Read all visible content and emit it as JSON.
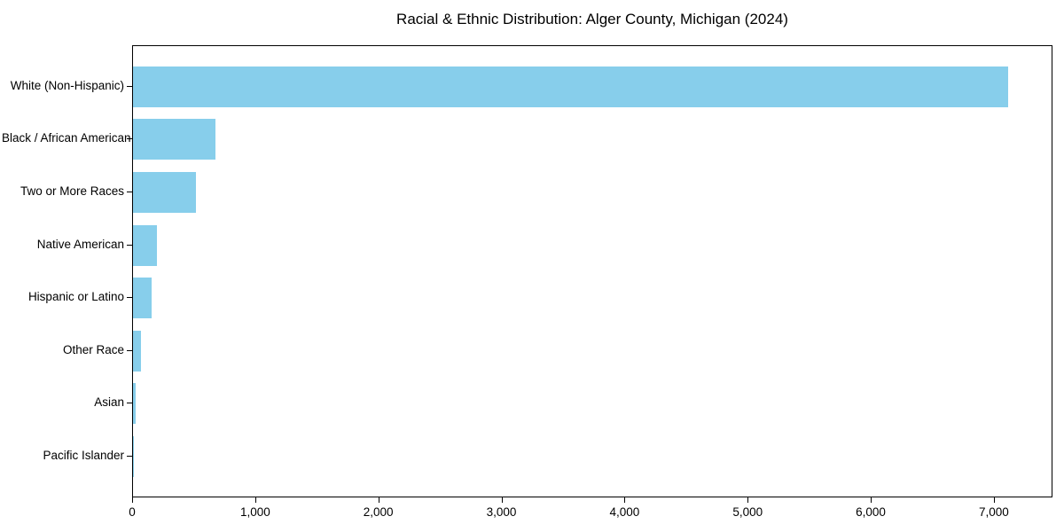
{
  "chart_data": {
    "type": "bar",
    "orientation": "horizontal",
    "title": "Racial & Ethnic Distribution: Alger County, Michigan (2024)",
    "categories": [
      "White (Non-Hispanic)",
      "Black / African American",
      "Two or More Races",
      "Native American",
      "Hispanic or Latino",
      "Other Race",
      "Asian",
      "Pacific Islander"
    ],
    "values": [
      7120,
      670,
      510,
      195,
      155,
      67,
      25,
      2
    ],
    "xlabel": "",
    "ylabel": "",
    "xlim": [
      0,
      7476
    ],
    "x_ticks": [
      0,
      1000,
      2000,
      3000,
      4000,
      5000,
      6000,
      7000
    ],
    "x_tick_labels": [
      "0",
      "1,000",
      "2,000",
      "3,000",
      "4,000",
      "5,000",
      "6,000",
      "7,000"
    ],
    "bar_color": "#87CEEB",
    "grid": false,
    "legend": null
  }
}
